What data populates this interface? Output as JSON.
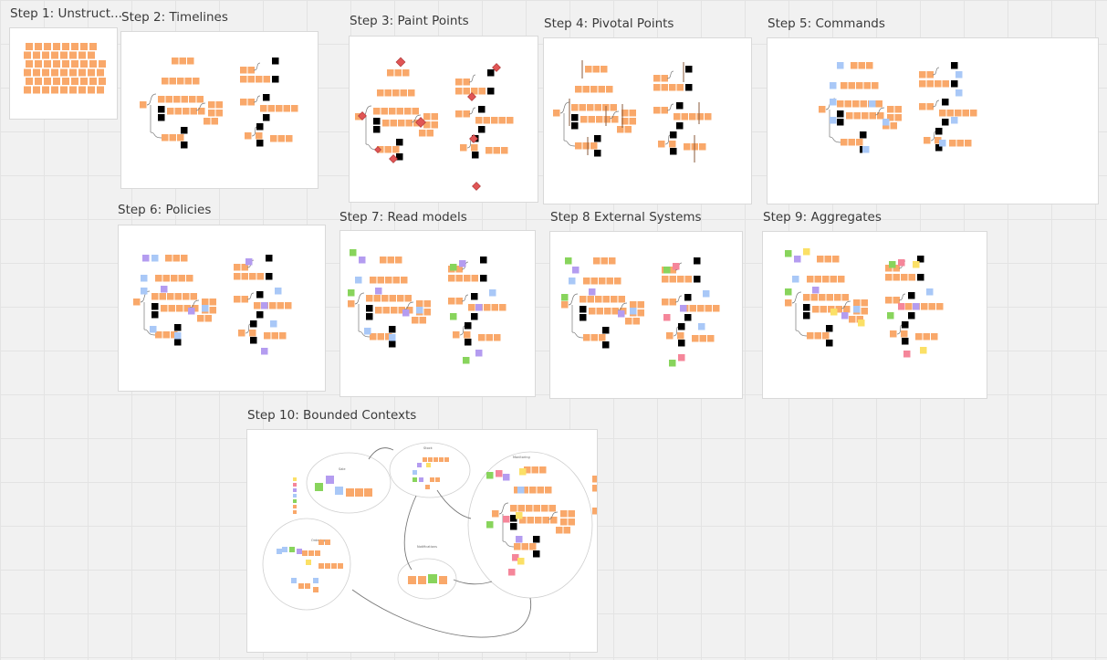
{
  "board": {
    "frames": [
      {
        "key": "s1",
        "title": "Step 1: Unstruct...",
        "layer": 0
      },
      {
        "key": "s2",
        "title": "Step 2: Timelines",
        "layer": 1
      },
      {
        "key": "s3",
        "title": "Step 3: Paint Points",
        "layer": 2
      },
      {
        "key": "s4",
        "title": "Step 4: Pivotal Points",
        "layer": 3
      },
      {
        "key": "s5",
        "title": "Step 5: Commands",
        "layer": 4
      },
      {
        "key": "s6",
        "title": "Step 6: Policies",
        "layer": 5
      },
      {
        "key": "s7",
        "title": "Step 7: Read models",
        "layer": 6
      },
      {
        "key": "s8",
        "title": "Step 8 External Systems",
        "layer": 7
      },
      {
        "key": "s9",
        "title": "Step 9: Aggregates",
        "layer": 8
      },
      {
        "key": "s10",
        "title": "Step 10: Bounded Contexts",
        "layer": 9
      }
    ],
    "bounded_contexts": [
      {
        "key": "sale",
        "label": "Sale"
      },
      {
        "key": "stock",
        "label": "Stock"
      },
      {
        "key": "monitoring",
        "label": "Monitoring"
      },
      {
        "key": "ordering",
        "label": "Ordering"
      },
      {
        "key": "notifications",
        "label": "Notifications"
      }
    ],
    "colors": {
      "event": "#f9a86a",
      "command": "#a9c8f7",
      "policy": "#b49cf0",
      "read_model": "#88d45c",
      "external": "#f5869a",
      "aggregate": "#fbe066",
      "hotspot": "#e05555",
      "connector": "#777777",
      "frame_bg": "#ffffff",
      "canvas_bg": "#f1f1f1"
    }
  }
}
